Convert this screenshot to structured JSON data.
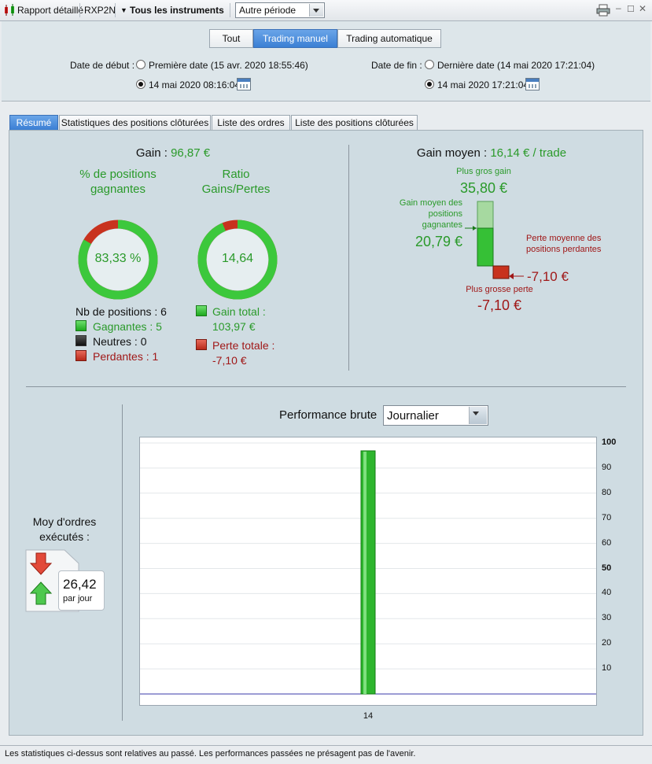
{
  "toolbar": {
    "report_label": "Rapport détaillé",
    "account": "RXP2N",
    "instruments": "Tous les instruments",
    "period": "Autre période",
    "window_controls": [
      "print-icon",
      "minimize-icon",
      "maximize-icon",
      "close-icon"
    ]
  },
  "header": {
    "segments": [
      "Tout",
      "Trading manuel",
      "Trading automatique"
    ],
    "active_segment": "Trading manuel",
    "start_label": "Date de début :",
    "start_first": "Première date (15 avr. 2020 18:55:46)",
    "start_custom": "14 mai 2020 08:16:04",
    "end_label": "Date de fin :",
    "end_last": "Dernière date (14 mai 2020 17:21:04)",
    "end_custom": "14 mai 2020 17:21:04"
  },
  "tabs": [
    "Résumé",
    "Statistiques des positions clôturées",
    "Liste des ordres",
    "Liste des positions clôturées"
  ],
  "summary": {
    "gain_label": "Gain : ",
    "gain_value": "96,87 €",
    "pct_title": "% de positions gagnantes",
    "pct_value": "83,33 %",
    "pct_fraction": 0.8333,
    "ratio_title": "Ratio Gains/Pertes",
    "ratio_value": "14,64",
    "ratio_fraction": 0.936,
    "nb_positions": "Nb de positions : 6",
    "winners": "Gagnantes : 5",
    "neutral": "Neutres : 0",
    "losers": "Perdantes : 1",
    "gain_total_label": "Gain total :",
    "gain_total_value": "103,97 €",
    "loss_total_label": "Perte totale :",
    "loss_total_value": "-7,10 €"
  },
  "average": {
    "title_label": "Gain moyen : ",
    "title_value": "16,14 € / trade",
    "max_gain_label": "Plus gros gain",
    "max_gain_value": "35,80 €",
    "avg_win_label": "Gain moyen des positions gagnantes",
    "avg_win_value": "20,79 €",
    "avg_loss_label": "Perte moyenne des positions perdantes",
    "avg_loss_value": "-7,10 €",
    "max_loss_label": "Plus grosse perte",
    "max_loss_value": "-7,10 €"
  },
  "orders": {
    "title": "Moy d'ordres exécutés :",
    "value": "26,42",
    "unit": "par jour"
  },
  "performance": {
    "title": "Performance brute",
    "period": "Journalier"
  },
  "chart_data": {
    "type": "bar",
    "categories": [
      "14"
    ],
    "values": [
      96.87
    ],
    "ylim": [
      0,
      100
    ],
    "yticks": [
      10,
      20,
      30,
      40,
      50,
      60,
      70,
      80,
      90,
      100
    ],
    "bold_ticks": [
      50,
      100
    ],
    "colors": {
      "bar": "#2db52d",
      "baseline": "#3a3aa8"
    }
  },
  "footer": "Les statistiques ci-dessus sont relatives au passé. Les performances passées ne présagent pas de l'avenir."
}
